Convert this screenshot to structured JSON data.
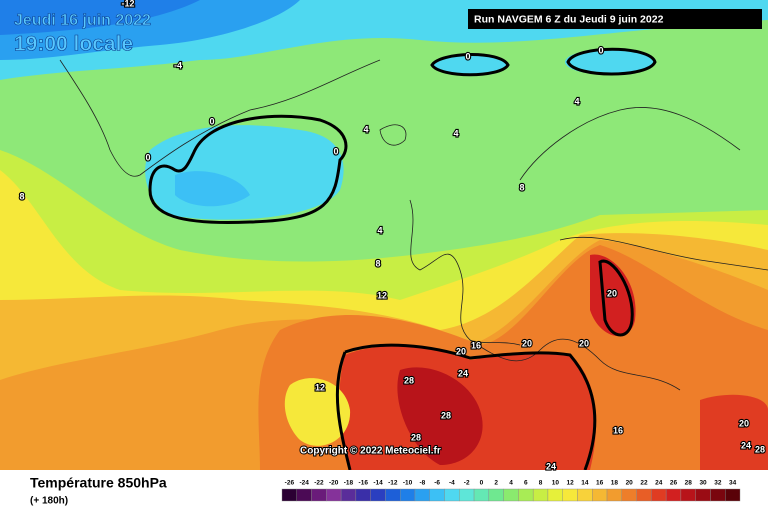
{
  "header": {
    "date": "Jeudi 16 juin 2022",
    "time": "19:00 locale",
    "run": "Run NAVGEM 6 Z du Jeudi 9 juin 2022"
  },
  "map": {
    "copyright": "Copyright © 2022 Meteociel.fr",
    "contour_labels": [
      -12,
      -4,
      0,
      0,
      0,
      0,
      0,
      4,
      4,
      4,
      4,
      8,
      8,
      8,
      12,
      12,
      16,
      16,
      20,
      20,
      20,
      20,
      20,
      24,
      24,
      24,
      28,
      28,
      28,
      28
    ]
  },
  "footer": {
    "variable": "Température 850hPa",
    "lead": "(+ 180h)"
  },
  "legend": {
    "values": [
      -26,
      -24,
      -22,
      -20,
      -18,
      -16,
      -14,
      -12,
      -10,
      -8,
      -6,
      -4,
      -2,
      0,
      2,
      4,
      6,
      8,
      10,
      12,
      14,
      16,
      18,
      20,
      22,
      24,
      26,
      28,
      30,
      32,
      34
    ],
    "colors": [
      "#2b0033",
      "#4b0a55",
      "#6a1b7a",
      "#85329a",
      "#5a2d9a",
      "#3a2fa8",
      "#2a3fc0",
      "#1d5fd8",
      "#1f7fe8",
      "#2aa0f0",
      "#3cc0f5",
      "#4fd8f0",
      "#5ee6d8",
      "#64e8b4",
      "#6fe890",
      "#8aea6e",
      "#a8ec55",
      "#c8ee44",
      "#e6f03a",
      "#f6e83a",
      "#f8d23a",
      "#f5b833",
      "#f29c2e",
      "#ee7e2a",
      "#e85e26",
      "#e03c22",
      "#d22020",
      "#b8141a",
      "#9a0c14",
      "#7a060e",
      "#5a0208"
    ]
  }
}
